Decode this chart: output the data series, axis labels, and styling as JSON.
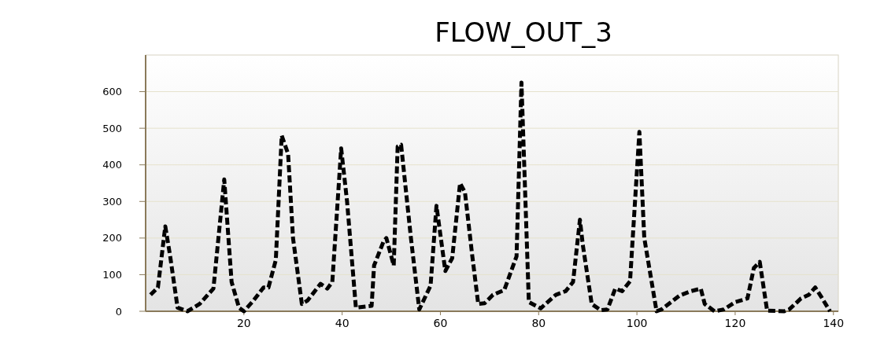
{
  "chart_data": {
    "type": "line",
    "title": "FLOW_OUT_3",
    "xlim": [
      0,
      141
    ],
    "xticks": [
      20,
      40,
      60,
      80,
      100,
      120,
      140
    ],
    "ylim": [
      0,
      700
    ],
    "yticks": [
      0,
      100,
      200,
      300,
      400,
      500,
      600
    ],
    "grid": "y",
    "line_style": "dashed",
    "marker": "none",
    "series": [
      {
        "color": "#000000",
        "x": [
          1,
          2.5,
          4,
          5,
          6.5,
          8.5,
          11,
          13.8,
          16,
          17.5,
          19,
          20,
          22,
          24,
          25,
          26.5,
          27.7,
          29,
          30,
          31.8,
          33,
          35.6,
          37,
          38,
          39.8,
          41,
          42.8,
          46,
          46.5,
          48.4,
          49,
          50.5,
          51.3,
          52,
          54,
          55.7,
          58,
          59.2,
          61,
          62.4,
          64,
          65,
          66.5,
          67.7,
          69,
          70.7,
          73,
          75.5,
          76.5,
          78,
          80.4,
          83.5,
          85.5,
          87,
          88.4,
          89,
          90.8,
          92.6,
          94,
          95.6,
          97,
          98.6,
          100.5,
          101.5,
          104,
          105,
          108.7,
          111,
          113,
          113.8,
          115.8,
          117.7,
          120,
          122.5,
          123.8,
          125,
          126.5,
          130,
          131,
          133.4,
          135,
          136.3,
          137.5,
          139.3
        ],
        "values": [
          45,
          65,
          232,
          150,
          10,
          0,
          20,
          62,
          360,
          80,
          10,
          0,
          30,
          65,
          65,
          140,
          480,
          430,
          200,
          20,
          30,
          75,
          62,
          80,
          445,
          300,
          10,
          15,
          125,
          190,
          200,
          125,
          450,
          455,
          200,
          5,
          70,
          288,
          110,
          145,
          350,
          325,
          150,
          20,
          22,
          45,
          58,
          150,
          625,
          25,
          8,
          45,
          55,
          80,
          250,
          180,
          20,
          3,
          5,
          62,
          55,
          82,
          490,
          200,
          0,
          5,
          43,
          55,
          62,
          20,
          0,
          5,
          25,
          35,
          118,
          135,
          2,
          0,
          5,
          35,
          45,
          65,
          40,
          0
        ]
      }
    ]
  }
}
